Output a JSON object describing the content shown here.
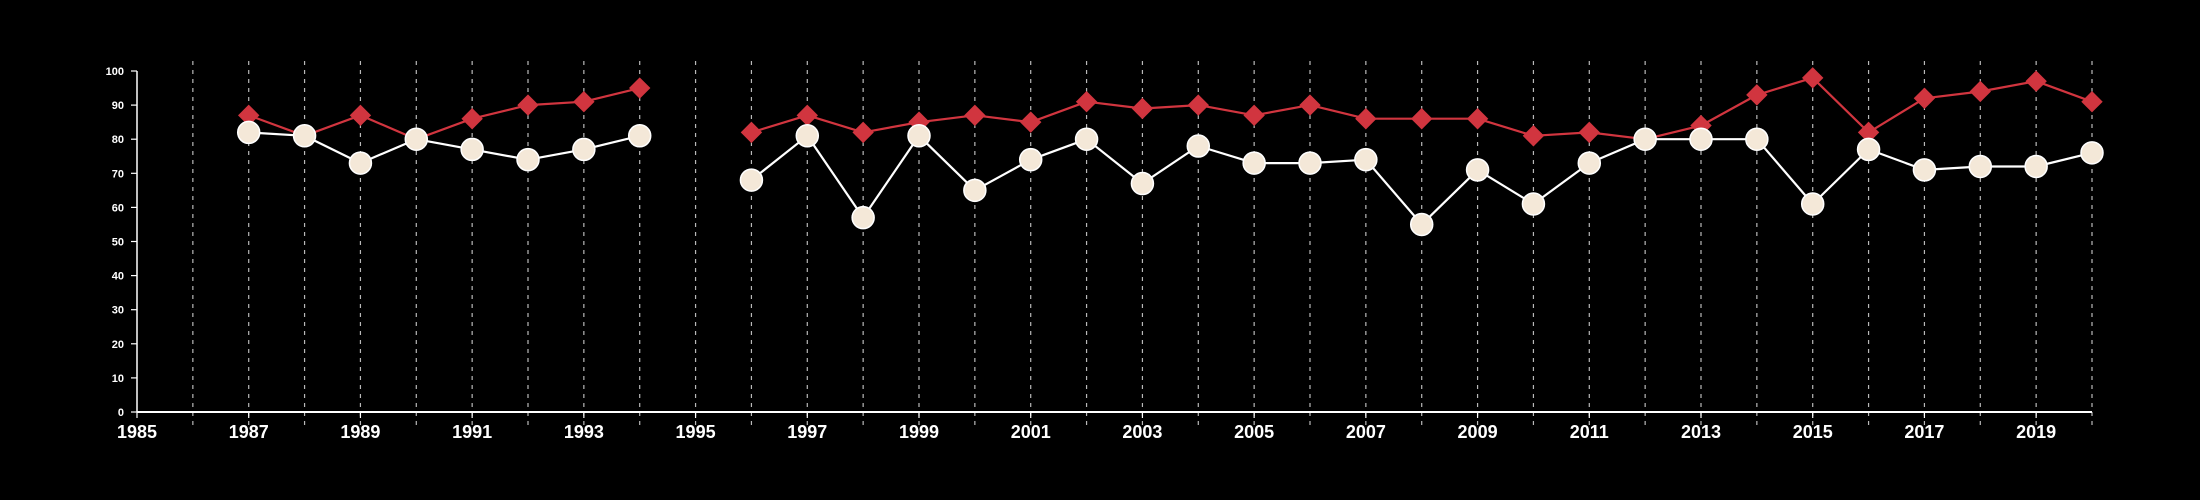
{
  "chart_data": {
    "type": "line",
    "title": "",
    "xlabel": "",
    "ylabel": "",
    "xlim": [
      1985,
      2020
    ],
    "ylim": [
      0,
      100
    ],
    "x_ticks": [
      1985,
      1987,
      1989,
      1991,
      1993,
      1995,
      1997,
      1999,
      2001,
      2003,
      2005,
      2007,
      2009,
      2011,
      2013,
      2015,
      2017,
      2019
    ],
    "y_ticks": [
      0,
      10,
      20,
      30,
      40,
      50,
      60,
      70,
      80,
      90,
      100
    ],
    "grid": "vertical dashed lines at every year from 1986 to 2020",
    "legend": "none",
    "series": [
      {
        "color": "#d1353f",
        "marker": "diamond",
        "segments": [
          {
            "x": [
              1987,
              1988,
              1989,
              1990,
              1991,
              1992,
              1993,
              1994
            ],
            "y": [
              87,
              81,
              87,
              80,
              86,
              90,
              91,
              95
            ]
          },
          {
            "x": [
              1996,
              1997,
              1998,
              1999,
              2000,
              2001,
              2002,
              2003,
              2004,
              2005,
              2006,
              2007,
              2008,
              2009,
              2010,
              2011,
              2012,
              2013,
              2014,
              2015,
              2016,
              2017,
              2018,
              2019,
              2020
            ],
            "y": [
              82,
              87,
              82,
              85,
              87,
              85,
              91,
              89,
              90,
              87,
              90,
              86,
              86,
              86,
              81,
              82,
              80,
              84,
              93,
              98,
              82,
              92,
              94,
              97,
              91
            ]
          }
        ]
      },
      {
        "color": "#f4e8d8",
        "line_color": "#ffffff",
        "marker": "circle",
        "segments": [
          {
            "x": [
              1987,
              1988,
              1989,
              1990,
              1991,
              1992,
              1993,
              1994
            ],
            "y": [
              82,
              81,
              73,
              80,
              77,
              74,
              77,
              81
            ]
          },
          {
            "x": [
              1996,
              1997,
              1998,
              1999,
              2000,
              2001,
              2002,
              2003,
              2004,
              2005,
              2006,
              2007,
              2008,
              2009,
              2010,
              2011,
              2012,
              2013,
              2014,
              2015,
              2016,
              2017,
              2018,
              2019,
              2020
            ],
            "y": [
              68,
              81,
              57,
              81,
              65,
              74,
              80,
              67,
              78,
              73,
              73,
              74,
              55,
              71,
              61,
              73,
              80,
              80,
              80,
              61,
              77,
              71,
              72,
              72,
              76
            ]
          }
        ]
      }
    ]
  }
}
